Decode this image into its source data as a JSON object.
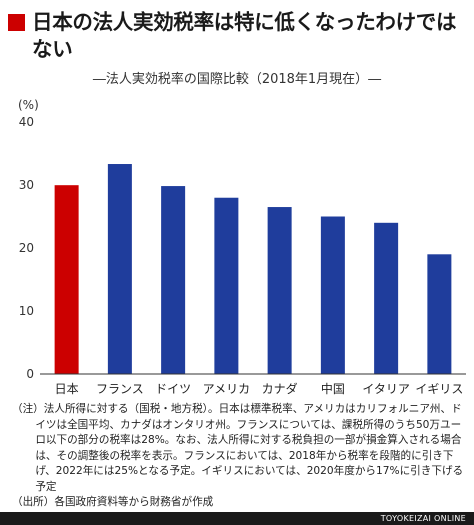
{
  "title": "日本の法人実効税率は特に低くなったわけではない",
  "subtitle": "―法人実効税率の国際比較（2018年1月現在）―",
  "chart_data": {
    "type": "bar",
    "title": "日本の法人実効税率は特に低くなったわけではない",
    "subtitle": "法人実効税率の国際比較（2018年1月現在）",
    "ylabel": "(%)",
    "xlabel": "",
    "categories": [
      "日本",
      "フランス",
      "ドイツ",
      "アメリカ",
      "カナダ",
      "中国",
      "イタリア",
      "イギリス"
    ],
    "values": [
      29.97,
      33.33,
      29.83,
      27.98,
      26.5,
      25.0,
      24.0,
      19.0
    ],
    "ylim": [
      0,
      40
    ],
    "yticks": [
      "0",
      "10",
      "20",
      "30",
      "40"
    ],
    "highlight_color": "#cc0000",
    "bar_color": "#1f3d9c",
    "grid": false
  },
  "notes": {
    "note": "（注）法人所得に対する（国税・地方税）。日本は標準税率、アメリカはカリフォルニア州、ドイツは全国平均、カナダはオンタリオ州。フランスについては、課税所得のうち50万ユーロ以下の部分の税率は28%。なお、法人所得に対する税負担の一部が損金算入される場合は、その調整後の税率を表示。フランスにおいては、2018年から税率を段階的に引き下げ、2022年には25%となる予定。イギリスにおいては、2020年度から17%に引き下げる予定",
    "source": "（出所）各国政府資料等から財務省が作成"
  },
  "footer": "TOYOKEIZAI ONLINE"
}
